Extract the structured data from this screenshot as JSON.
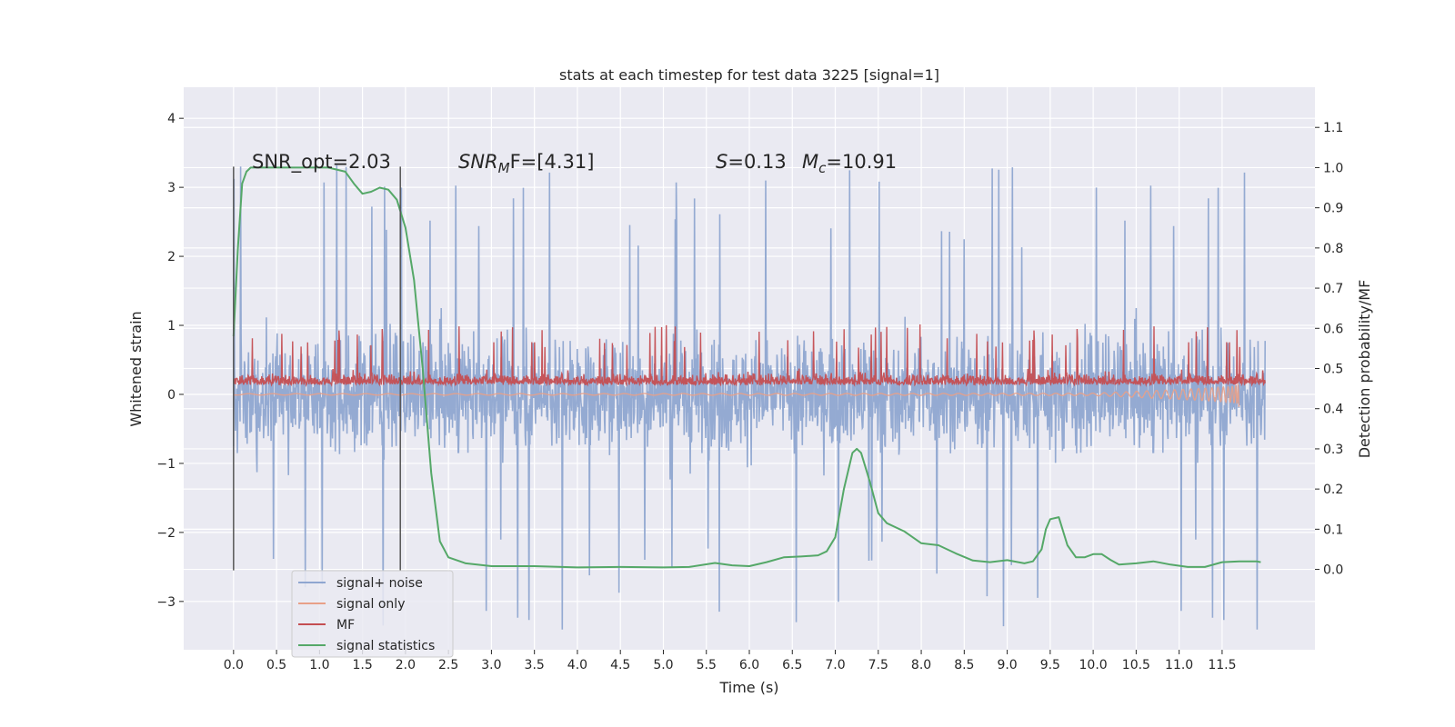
{
  "chart_data": {
    "type": "line",
    "title": "stats at each timestep for test data 3225 [signal=1]",
    "xlabel": "Time (s)",
    "ylabel_left": "Whitened strain",
    "ylabel_right": "Detection probability/MF",
    "xlim": [
      -0.58,
      12.58
    ],
    "ylim_left": [
      -3.7,
      4.45
    ],
    "ylim_right": [
      -0.2,
      1.2
    ],
    "x_ticks": [
      "0.0",
      "0.5",
      "1.0",
      "1.5",
      "2.0",
      "2.5",
      "3.0",
      "3.5",
      "4.0",
      "4.5",
      "5.0",
      "5.5",
      "6.0",
      "6.5",
      "7.0",
      "7.5",
      "8.0",
      "8.5",
      "9.0",
      "9.5",
      "10.0",
      "10.5",
      "11.0",
      "11.5"
    ],
    "y_ticks_left": [
      "−3",
      "−2",
      "−1",
      "0",
      "1",
      "2",
      "3",
      "4"
    ],
    "y_ticks_right": [
      "0.0",
      "0.1",
      "0.2",
      "0.3",
      "0.4",
      "0.5",
      "0.6",
      "0.7",
      "0.8",
      "0.9",
      "1.0",
      "1.1"
    ],
    "grid": true,
    "legend_position": "lower-left",
    "annotations": {
      "snr_opt": "SNR_opt=2.03",
      "snr_mf_main": "SNR",
      "snr_mf_sub": "M",
      "snr_mf_rest": "F=[4.31]",
      "s_label": "S",
      "s_value": "=0.13",
      "mc_label": "M",
      "mc_sub": "c",
      "mc_value": "=10.91"
    },
    "vlines": [
      0.0,
      1.94
    ],
    "series": [
      {
        "name": "signal+ noise",
        "color": "#8fa6d0",
        "axis": "left",
        "kind": "noise",
        "x_range": [
          0.0,
          12.0
        ],
        "level": 0.0,
        "amplitude_typical": 1.2,
        "amplitude_peak": 3.5
      },
      {
        "name": "signal only",
        "color": "#e8a088",
        "axis": "left",
        "kind": "chirp",
        "x_range": [
          0.0,
          11.7
        ],
        "merger_time": 11.7
      },
      {
        "name": "MF",
        "color": "#c44e52",
        "axis": "left",
        "kind": "noise",
        "x_range": [
          0.0,
          12.0
        ],
        "level": 0.25,
        "amplitude_typical": 0.25,
        "amplitude_peak": 1.0
      },
      {
        "name": "signal statistics",
        "color": "#55a868",
        "axis": "right",
        "kind": "curve",
        "x": [
          0.0,
          0.05,
          0.1,
          0.15,
          0.2,
          0.3,
          0.5,
          0.8,
          1.1,
          1.3,
          1.4,
          1.5,
          1.6,
          1.7,
          1.8,
          1.9,
          2.0,
          2.1,
          2.2,
          2.3,
          2.4,
          2.5,
          2.7,
          3.0,
          3.5,
          4.0,
          4.5,
          5.0,
          5.3,
          5.6,
          5.8,
          6.0,
          6.2,
          6.4,
          6.6,
          6.8,
          6.9,
          7.0,
          7.1,
          7.2,
          7.25,
          7.3,
          7.4,
          7.5,
          7.6,
          7.8,
          8.0,
          8.2,
          8.4,
          8.6,
          8.8,
          9.0,
          9.2,
          9.3,
          9.4,
          9.45,
          9.5,
          9.6,
          9.7,
          9.8,
          9.9,
          10.0,
          10.1,
          10.2,
          10.3,
          10.5,
          10.7,
          10.9,
          11.1,
          11.3,
          11.5,
          11.7,
          11.9,
          11.95
        ],
        "y": [
          0.58,
          0.8,
          0.96,
          0.99,
          1.0,
          1.0,
          1.0,
          1.0,
          1.0,
          0.99,
          0.96,
          0.935,
          0.94,
          0.95,
          0.945,
          0.92,
          0.85,
          0.72,
          0.5,
          0.24,
          0.07,
          0.03,
          0.015,
          0.008,
          0.008,
          0.005,
          0.006,
          0.005,
          0.006,
          0.016,
          0.01,
          0.008,
          0.018,
          0.03,
          0.032,
          0.035,
          0.045,
          0.08,
          0.2,
          0.29,
          0.3,
          0.29,
          0.22,
          0.14,
          0.115,
          0.095,
          0.065,
          0.06,
          0.04,
          0.022,
          0.018,
          0.023,
          0.015,
          0.02,
          0.05,
          0.1,
          0.125,
          0.13,
          0.06,
          0.03,
          0.03,
          0.038,
          0.038,
          0.024,
          0.012,
          0.015,
          0.02,
          0.012,
          0.006,
          0.006,
          0.018,
          0.02,
          0.02,
          0.018
        ]
      }
    ]
  }
}
